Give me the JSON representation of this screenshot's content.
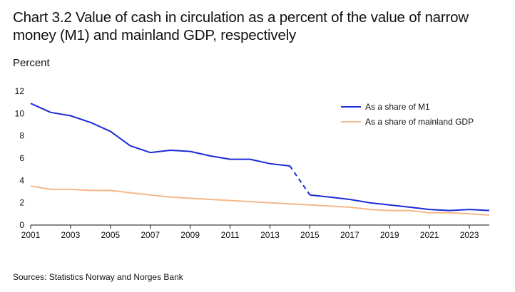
{
  "chart_data": {
    "type": "line",
    "title": "Chart 3.2 Value of cash in circulation as a percent of the value of narrow money (M1) and mainland GDP, respectively",
    "ylabel": "Percent",
    "xlabel": "",
    "source": "Sources: Statistics Norway and Norges Bank",
    "xlim": [
      2001,
      2024
    ],
    "ylim": [
      0,
      12
    ],
    "yticks": [
      "0",
      "2",
      "4",
      "6",
      "8",
      "10",
      "12"
    ],
    "xticks": [
      "2001",
      "2003",
      "2005",
      "2007",
      "2009",
      "2011",
      "2013",
      "2015",
      "2017",
      "2019",
      "2021",
      "2023"
    ],
    "legend_position": "top-right",
    "grid": false,
    "series": [
      {
        "name": "As a share of M1",
        "color": "#1a2bd6",
        "break_dashed_between": [
          2014,
          2015
        ],
        "x": [
          2001,
          2002,
          2003,
          2004,
          2005,
          2006,
          2007,
          2008,
          2009,
          2010,
          2011,
          2012,
          2013,
          2014,
          2015,
          2016,
          2017,
          2018,
          2019,
          2020,
          2021,
          2022,
          2023,
          2024
        ],
        "values": [
          10.9,
          10.1,
          9.8,
          9.2,
          8.4,
          7.1,
          6.5,
          6.7,
          6.6,
          6.2,
          5.9,
          5.9,
          5.5,
          5.3,
          2.7,
          2.5,
          2.3,
          2.0,
          1.8,
          1.6,
          1.4,
          1.3,
          1.4,
          1.3
        ]
      },
      {
        "name": "As a share of mainland GDP",
        "color": "#f5b889",
        "x": [
          2001,
          2002,
          2003,
          2004,
          2005,
          2006,
          2007,
          2008,
          2009,
          2010,
          2011,
          2012,
          2013,
          2014,
          2015,
          2016,
          2017,
          2018,
          2019,
          2020,
          2021,
          2022,
          2023,
          2024
        ],
        "values": [
          3.5,
          3.2,
          3.2,
          3.1,
          3.1,
          2.9,
          2.7,
          2.5,
          2.4,
          2.3,
          2.2,
          2.1,
          2.0,
          1.9,
          1.8,
          1.7,
          1.6,
          1.4,
          1.3,
          1.3,
          1.1,
          1.1,
          1.0,
          0.9
        ]
      }
    ]
  }
}
